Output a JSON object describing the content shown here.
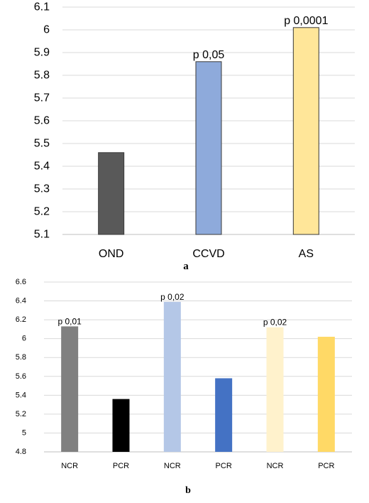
{
  "chart_data": [
    {
      "type": "bar",
      "categories": [
        "OND",
        "CCVD",
        "AS"
      ],
      "values": [
        5.46,
        5.86,
        6.01
      ],
      "colors": [
        "#595959",
        "#8eaadb",
        "#ffe699"
      ],
      "annotations": [
        "",
        "p 0,05",
        "p 0,0001"
      ],
      "yticks": [
        "5.1",
        "5.2",
        "5.3",
        "5.4",
        "5.5",
        "5.6",
        "5.7",
        "5.8",
        "5.9",
        "6",
        "6.1"
      ],
      "ylim": [
        5.1,
        6.1
      ],
      "grid": true,
      "caption": "a"
    },
    {
      "type": "bar",
      "categories": [
        "NCR",
        "PCR",
        "NCR",
        "PCR",
        "NCR",
        "PCR"
      ],
      "values": [
        6.13,
        5.36,
        6.39,
        5.58,
        6.12,
        6.02
      ],
      "colors": [
        "#808080",
        "#000000",
        "#b4c7e7",
        "#4472c4",
        "#fff2cc",
        "#ffd966"
      ],
      "annotations": [
        "p 0,01",
        "",
        "p 0,02",
        "",
        "p 0,02",
        ""
      ],
      "yticks": [
        "4.8",
        "5",
        "5.2",
        "5.4",
        "5.6",
        "5.8",
        "6",
        "6.2",
        "6.4",
        "6.6"
      ],
      "ylim": [
        4.8,
        6.6
      ],
      "grid": true,
      "caption": "b"
    }
  ]
}
